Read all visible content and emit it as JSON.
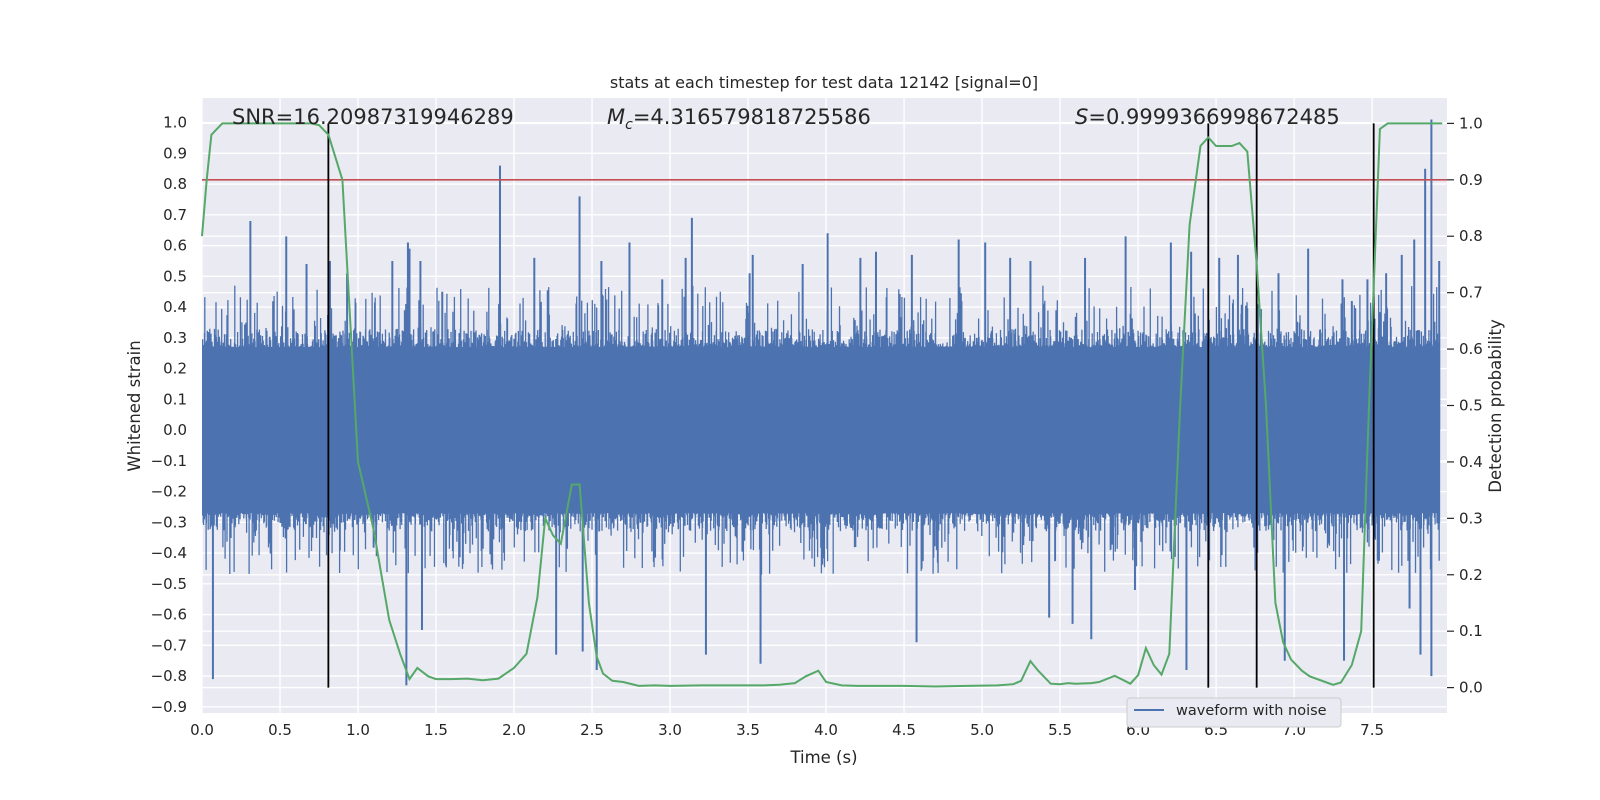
{
  "chart_data": {
    "type": "line",
    "title": "stats at each timestep for test data 12142 [signal=0]",
    "xlabel": "Time (s)",
    "ylabel_left": "Whitened strain",
    "ylabel_right": "Detection probability",
    "xlim": [
      0.0,
      7.98
    ],
    "ylim_left": [
      -0.92,
      1.08
    ],
    "ylim_right": [
      -0.045,
      1.045
    ],
    "x_ticks": [
      "0.0",
      "0.5",
      "1.0",
      "1.5",
      "2.0",
      "2.5",
      "3.0",
      "3.5",
      "4.0",
      "4.5",
      "5.0",
      "5.5",
      "6.0",
      "6.5",
      "7.0",
      "7.5"
    ],
    "x_tick_values": [
      0.0,
      0.5,
      1.0,
      1.5,
      2.0,
      2.5,
      3.0,
      3.5,
      4.0,
      4.5,
      5.0,
      5.5,
      6.0,
      6.5,
      7.0,
      7.5
    ],
    "y_left_ticks": [
      "1.0",
      "0.9",
      "0.8",
      "0.7",
      "0.6",
      "0.5",
      "0.4",
      "0.3",
      "0.2",
      "0.1",
      "0.0",
      "−0.1",
      "−0.2",
      "−0.3",
      "−0.4",
      "−0.5",
      "−0.6",
      "−0.7",
      "−0.8",
      "−0.9"
    ],
    "y_left_tick_values": [
      1.0,
      0.9,
      0.8,
      0.7,
      0.6,
      0.5,
      0.4,
      0.3,
      0.2,
      0.1,
      0.0,
      -0.1,
      -0.2,
      -0.3,
      -0.4,
      -0.5,
      -0.6,
      -0.7,
      -0.8,
      -0.9
    ],
    "y_right_ticks": [
      "1.0",
      "0.9",
      "0.8",
      "0.7",
      "0.6",
      "0.5",
      "0.4",
      "0.3",
      "0.2",
      "0.1",
      "0.0"
    ],
    "y_right_tick_values": [
      1.0,
      0.9,
      0.8,
      0.7,
      0.6,
      0.5,
      0.4,
      0.3,
      0.2,
      0.1,
      0.0
    ],
    "grid": true,
    "legend_position": "lower-right",
    "annotations": {
      "snr": "SNR=16.20987319946289",
      "mc_symbol": "M",
      "mc_subscript": "c",
      "mc_value": "=4.316579818725586",
      "s_symbol": "S",
      "s_value": "=0.9999366998672485"
    },
    "threshold": {
      "value_right_axis": 0.9,
      "color": "#c44e52"
    },
    "vertical_markers": [
      0.81,
      6.45,
      6.76,
      7.51
    ],
    "series": [
      {
        "name": "waveform with noise",
        "color": "#4c72b0",
        "style": "dense noisy strain, bulk within about ±0.3",
        "spike_peaks": [
          [
            0.05,
            0.12
          ],
          [
            0.07,
            -0.81
          ],
          [
            0.31,
            0.68
          ],
          [
            0.54,
            0.63
          ],
          [
            0.67,
            0.54
          ],
          [
            0.82,
            0.55
          ],
          [
            0.93,
            0.51
          ],
          [
            1.22,
            0.55
          ],
          [
            1.32,
            0.61
          ],
          [
            1.31,
            -0.83
          ],
          [
            1.33,
            0.59
          ],
          [
            1.4,
            0.55
          ],
          [
            1.41,
            -0.65
          ],
          [
            1.54,
            0.45
          ],
          [
            1.91,
            0.86
          ],
          [
            2.13,
            0.56
          ],
          [
            2.27,
            -0.73
          ],
          [
            2.42,
            0.76
          ],
          [
            2.44,
            -0.72
          ],
          [
            2.53,
            -0.78
          ],
          [
            2.56,
            0.55
          ],
          [
            2.74,
            0.61
          ],
          [
            2.95,
            0.49
          ],
          [
            3.1,
            0.56
          ],
          [
            3.14,
            0.69
          ],
          [
            3.23,
            -0.73
          ],
          [
            3.51,
            0.51
          ],
          [
            3.53,
            0.57
          ],
          [
            3.58,
            -0.76
          ],
          [
            3.85,
            0.54
          ],
          [
            4.01,
            0.64
          ],
          [
            4.22,
            0.56
          ],
          [
            4.32,
            0.58
          ],
          [
            4.55,
            0.57
          ],
          [
            4.58,
            -0.69
          ],
          [
            4.85,
            0.62
          ],
          [
            5.02,
            0.61
          ],
          [
            5.18,
            0.56
          ],
          [
            5.31,
            0.55
          ],
          [
            5.43,
            -0.61
          ],
          [
            5.58,
            -0.63
          ],
          [
            5.66,
            0.56
          ],
          [
            5.7,
            -0.68
          ],
          [
            5.92,
            0.63
          ],
          [
            5.98,
            -0.52
          ],
          [
            6.21,
            0.61
          ],
          [
            6.31,
            -0.78
          ],
          [
            6.34,
            0.58
          ],
          [
            6.52,
            0.56
          ],
          [
            6.64,
            0.57
          ],
          [
            6.9,
            0.51
          ],
          [
            6.94,
            -0.75
          ],
          [
            7.09,
            0.59
          ],
          [
            7.31,
            0.49
          ],
          [
            7.32,
            -0.75
          ],
          [
            7.37,
            0.42
          ],
          [
            7.47,
            0.49
          ],
          [
            7.59,
            0.51
          ],
          [
            7.69,
            0.57
          ],
          [
            7.74,
            -0.58
          ],
          [
            7.77,
            0.62
          ],
          [
            7.81,
            -0.73
          ],
          [
            7.84,
            0.85
          ],
          [
            7.88,
            1.01
          ],
          [
            7.88,
            -0.8
          ],
          [
            7.93,
            0.55
          ]
        ]
      },
      {
        "name": "",
        "color": "#55a868",
        "axis": "right",
        "x": [
          0.0,
          0.03,
          0.06,
          0.13,
          0.2,
          0.3,
          0.4,
          0.5,
          0.6,
          0.7,
          0.75,
          0.81,
          0.9,
          1.0,
          1.1,
          1.2,
          1.27,
          1.33,
          1.38,
          1.45,
          1.5,
          1.6,
          1.7,
          1.8,
          1.9,
          2.0,
          2.08,
          2.15,
          2.2,
          2.25,
          2.3,
          2.33,
          2.37,
          2.42,
          2.48,
          2.53,
          2.57,
          2.63,
          2.7,
          2.8,
          2.9,
          3.0,
          3.2,
          3.4,
          3.6,
          3.7,
          3.8,
          3.87,
          3.95,
          4.0,
          4.1,
          4.2,
          4.3,
          4.5,
          4.7,
          4.9,
          5.1,
          5.2,
          5.25,
          5.31,
          5.36,
          5.44,
          5.5,
          5.55,
          5.6,
          5.7,
          5.75,
          5.85,
          5.9,
          5.95,
          6.0,
          6.05,
          6.1,
          6.15,
          6.2,
          6.27,
          6.33,
          6.4,
          6.45,
          6.5,
          6.55,
          6.6,
          6.65,
          6.7,
          6.76,
          6.82,
          6.88,
          6.93,
          6.98,
          7.05,
          7.1,
          7.2,
          7.25,
          7.3,
          7.37,
          7.43,
          7.48,
          7.55,
          7.6,
          7.65,
          7.7,
          7.8,
          7.9,
          7.95
        ],
        "y": [
          0.8,
          0.9,
          0.98,
          1.0,
          1.0,
          1.0,
          1.0,
          1.0,
          1.0,
          1.0,
          0.997,
          0.98,
          0.9,
          0.4,
          0.28,
          0.12,
          0.06,
          0.015,
          0.035,
          0.02,
          0.015,
          0.015,
          0.016,
          0.013,
          0.016,
          0.035,
          0.06,
          0.16,
          0.3,
          0.27,
          0.255,
          0.3,
          0.36,
          0.36,
          0.15,
          0.055,
          0.025,
          0.012,
          0.01,
          0.003,
          0.004,
          0.003,
          0.004,
          0.004,
          0.004,
          0.005,
          0.008,
          0.02,
          0.03,
          0.01,
          0.004,
          0.003,
          0.003,
          0.003,
          0.002,
          0.003,
          0.004,
          0.006,
          0.012,
          0.047,
          0.03,
          0.007,
          0.006,
          0.008,
          0.007,
          0.008,
          0.01,
          0.021,
          0.014,
          0.007,
          0.022,
          0.07,
          0.04,
          0.023,
          0.06,
          0.5,
          0.82,
          0.96,
          0.975,
          0.96,
          0.96,
          0.96,
          0.965,
          0.95,
          0.75,
          0.5,
          0.15,
          0.08,
          0.05,
          0.03,
          0.02,
          0.01,
          0.005,
          0.009,
          0.04,
          0.1,
          0.5,
          0.99,
          1.0,
          1.0,
          1.0,
          1.0,
          1.0,
          1.0
        ]
      }
    ]
  }
}
